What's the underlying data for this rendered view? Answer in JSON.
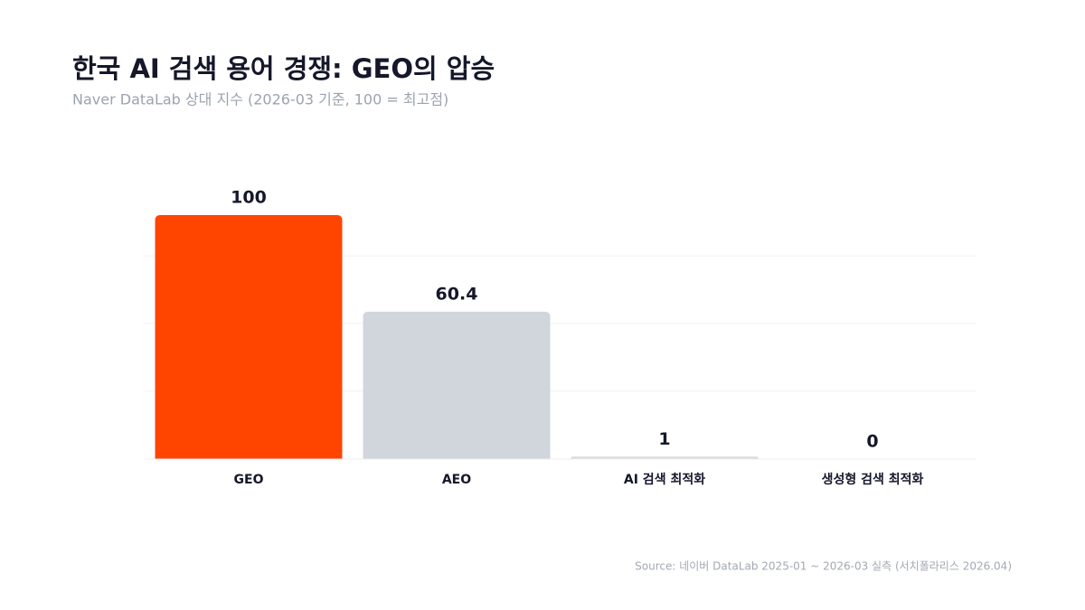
{
  "chart_data": {
    "type": "bar",
    "title": "한국 AI 검색 용어 경쟁: GEO의 압승",
    "subtitle": "Naver DataLab 상대 지수 (2026-03 기준, 100 = 최고점)",
    "source": "Source: 네이버 DataLab 2025-01 ~ 2026-03 실측 (서치폴라리스 2026.04)",
    "categories": [
      "GEO",
      "AEO",
      "AI 검색 최적화",
      "생성형 검색 최적화"
    ],
    "values": [
      100,
      60.4,
      1,
      0
    ],
    "colors": [
      "#ff4500",
      "#d1d5dc",
      "#dcdcdc",
      "#dcdcdc"
    ],
    "ylim": [
      0,
      111.1
    ],
    "yticks": [
      0,
      27.8,
      55.6,
      83.3
    ],
    "grid": true
  }
}
